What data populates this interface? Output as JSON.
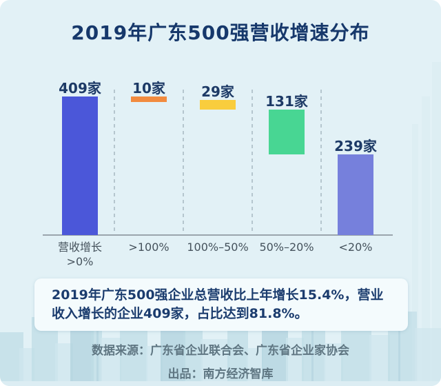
{
  "page": {
    "title": "2019年广东500强营收增速分布"
  },
  "chart_data": {
    "type": "bar",
    "variant": "waterfall",
    "title": "2019年广东500强营收增速分布",
    "categories": [
      "营收增长\n>0%",
      ">100%",
      "100%–50%",
      "50%–20%",
      "<20%"
    ],
    "values": [
      409,
      10,
      29,
      131,
      239
    ],
    "bar_labels": [
      "409家",
      "10家",
      "29家",
      "131家",
      "239家"
    ],
    "bar_colors": [
      "#4b57d9",
      "#f28b3f",
      "#f9cd3d",
      "#48d693",
      "#7680dc"
    ],
    "total_is_first": true,
    "unit": "家",
    "ylim": [
      0,
      409
    ],
    "grid": false,
    "legend": "none",
    "xlabel": "",
    "ylabel": ""
  },
  "summary": {
    "text": "2019年广东500强企业总营收比上年增长15.4%，营业收入增长的企业409家，占比达到81.8%。"
  },
  "footer": {
    "source": "数据来源：广东省企业联合会、广东省企业家协会",
    "publisher": "出品：南方经济智库"
  },
  "theme": {
    "background": "#e2f1f6",
    "title_color": "#16386b",
    "count_label_color": "#1d3a66",
    "tick_color": "#45525c",
    "axis_line_color": "#9aa4ac",
    "separator_color": "#b5c6ce",
    "summary_bg": "#f4fbfd",
    "summary_text_color": "#1b3c6e",
    "footer_text_color": "#5f7682",
    "skyline_tone_dark": "#b0d2de",
    "skyline_tone_mid": "#bfdce6",
    "skyline_tone_light": "#cfe6ed"
  }
}
